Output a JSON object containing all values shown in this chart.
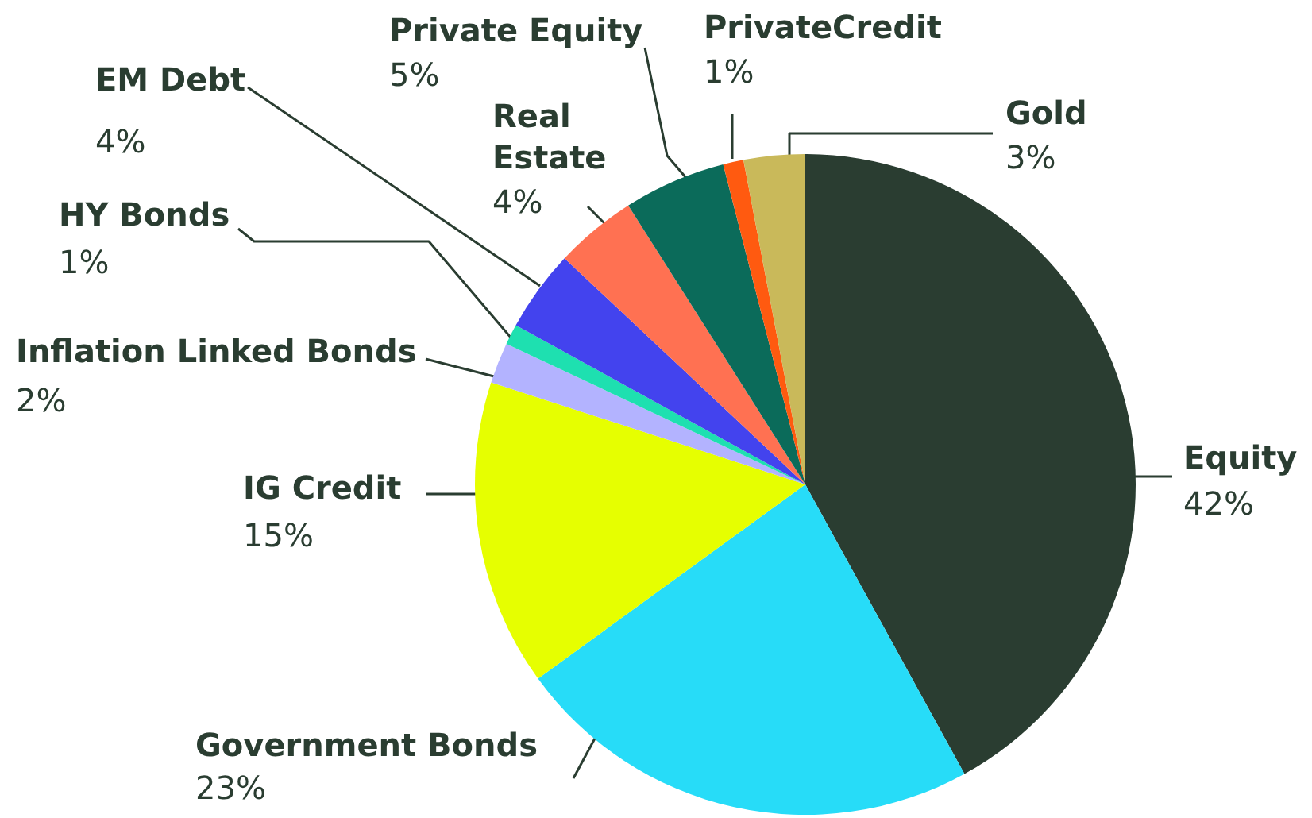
{
  "chart_data": {
    "type": "pie",
    "categories": [
      "Equity",
      "Government Bonds",
      "IG Credit",
      "Inflation Linked Bonds",
      "HY Bonds",
      "EM Debt",
      "Real Estate",
      "Private Equity",
      "PrivateCredit",
      "Gold"
    ],
    "values": [
      42,
      23,
      15,
      2,
      1,
      4,
      4,
      5,
      1,
      3
    ],
    "value_labels": [
      "42%",
      "23%",
      "15%",
      "2%",
      "1%",
      "4%",
      "4%",
      "5%",
      "1%",
      "3%"
    ],
    "colors": [
      "#2a3d31",
      "#27dcf8",
      "#e6ff00",
      "#b3b3ff",
      "#1ee0b0",
      "#4343ee",
      "#ff7152",
      "#0b6b5a",
      "#ff5a10",
      "#c9b95a"
    ]
  }
}
